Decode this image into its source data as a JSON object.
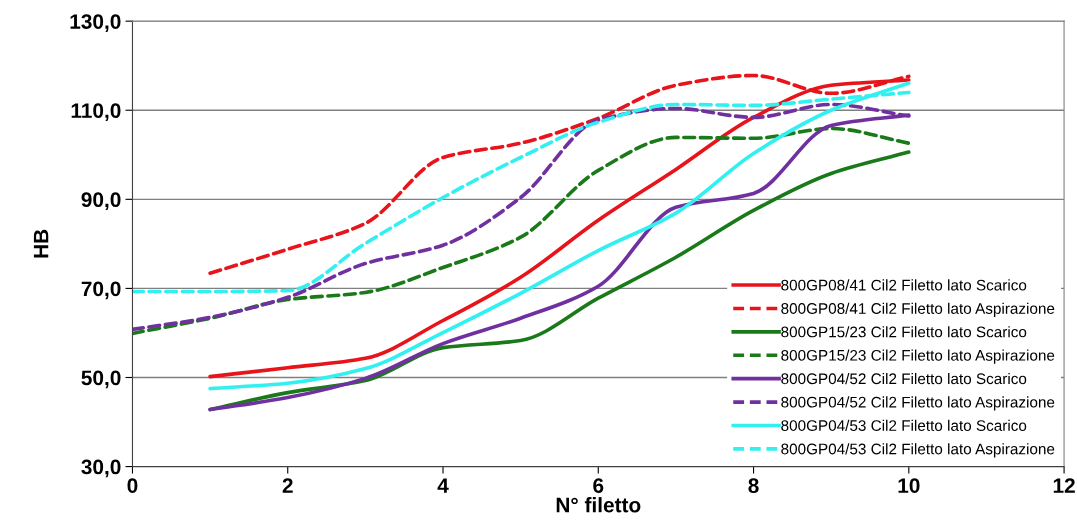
{
  "chart_data": {
    "type": "line",
    "xlabel": "N° filetto",
    "ylabel": "HB",
    "xlim": [
      0,
      12
    ],
    "xticks": [
      0,
      2,
      4,
      6,
      8,
      10,
      12
    ],
    "ylim": [
      30,
      130
    ],
    "yticks": [
      {
        "value": 30,
        "label": "30,0"
      },
      {
        "value": 50,
        "label": "50,0"
      },
      {
        "value": 70,
        "label": "70,0"
      },
      {
        "value": 90,
        "label": "90,0"
      },
      {
        "value": 110,
        "label": "110,0"
      },
      {
        "value": 130,
        "label": "130,0"
      }
    ],
    "grid": "y",
    "legend": "bottom right",
    "marker": "none",
    "series": [
      {
        "name": "800GP08/41 Cil2 Filetto lato Scarico",
        "color": "#e8141b",
        "line_style": "solid",
        "x": [
          1,
          2,
          3,
          4,
          5,
          6,
          7,
          8,
          9,
          10
        ],
        "values": [
          50.2,
          52.2,
          54.3,
          62.8,
          72.5,
          85.3,
          96.7,
          108.4,
          115.6,
          116.8
        ]
      },
      {
        "name": "800GP08/41 Cil2 Filetto lato Aspirazione",
        "color": "#e8141b",
        "line_style": "dashed",
        "x": [
          1,
          2,
          3,
          4,
          5,
          6,
          7,
          8,
          9,
          10
        ],
        "values": [
          73.4,
          78.8,
          84.6,
          99.4,
          102.6,
          108.2,
          115.6,
          117.8,
          113.8,
          117.6
        ]
      },
      {
        "name": "800GP15/23 Cil2 Filetto lato Scarico",
        "color": "#1a7a1a",
        "line_style": "solid",
        "x": [
          1,
          2,
          3,
          4,
          5,
          6,
          7,
          8,
          9,
          10
        ],
        "values": [
          42.8,
          46.6,
          49.3,
          56.7,
          58.3,
          67.8,
          77.0,
          87.5,
          95.8,
          100.6
        ]
      },
      {
        "name": "800GP15/23 Cil2 Filetto lato Aspirazione",
        "color": "#1a7a1a",
        "line_style": "dashed",
        "x": [
          0,
          1,
          2,
          3,
          4,
          5,
          6,
          7,
          8,
          9,
          10
        ],
        "values": [
          59.9,
          63.3,
          67.5,
          69.1,
          74.7,
          81.5,
          96.5,
          103.9,
          103.7,
          105.9,
          102.6
        ]
      },
      {
        "name": "800GP04/52 Cil2 Filetto lato Scarico",
        "color": "#7030a0",
        "line_style": "solid",
        "x": [
          1,
          2,
          3,
          4,
          5,
          6,
          7,
          8,
          9,
          10
        ],
        "values": [
          42.8,
          45.5,
          49.8,
          57.6,
          63.3,
          70.5,
          88.2,
          91.3,
          106.6,
          108.9
        ]
      },
      {
        "name": "800GP04/52 Cil2 Filetto lato Aspirazione",
        "color": "#7030a0",
        "line_style": "dashed",
        "x": [
          0,
          1,
          2,
          3,
          4,
          5,
          6,
          7,
          8,
          9,
          10
        ],
        "values": [
          60.8,
          63.5,
          68.0,
          75.6,
          79.7,
          90.4,
          107.8,
          110.4,
          108.4,
          111.3,
          108.7
        ]
      },
      {
        "name": "800GP04/53 Cil2 Filetto lato Scarico",
        "color": "#33f0f0",
        "line_style": "solid",
        "x": [
          1,
          2,
          3,
          4,
          5,
          6,
          7,
          8,
          9,
          10
        ],
        "values": [
          47.5,
          48.7,
          52.0,
          60.1,
          68.9,
          78.5,
          86.9,
          100.3,
          110.0,
          116.1
        ]
      },
      {
        "name": "800GP04/53 Cil2 Filetto lato Aspirazione",
        "color": "#33f0f0",
        "line_style": "dashed",
        "x": [
          0,
          1,
          2,
          3,
          4,
          5,
          6,
          7,
          8,
          9,
          10
        ],
        "values": [
          69.3,
          69.3,
          69.5,
          80.1,
          90.4,
          99.4,
          107.3,
          111.3,
          111.1,
          112.5,
          114.0
        ]
      }
    ]
  }
}
